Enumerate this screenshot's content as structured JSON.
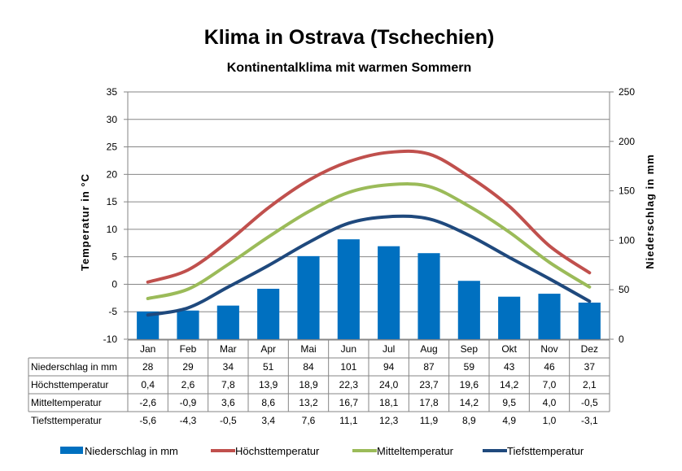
{
  "chart_data": {
    "type": "bar",
    "title": "Klima in Ostrava (Tschechien)",
    "subtitle": "Kontinentalklima mit warmen Sommern",
    "categories": [
      "Jan",
      "Feb",
      "Mar",
      "Apr",
      "Mai",
      "Jun",
      "Jul",
      "Aug",
      "Sep",
      "Okt",
      "Nov",
      "Dez"
    ],
    "y_left": {
      "label": "Temperatur  in  °C",
      "range": [
        -10,
        35
      ],
      "ticks": [
        "35",
        "30",
        "25",
        "20",
        "15",
        "10",
        "5",
        "0",
        "-5",
        "-10"
      ]
    },
    "y_right": {
      "label": "Niederschlag  in  mm",
      "range": [
        0,
        250
      ],
      "ticks": [
        "250",
        "200",
        "150",
        "100",
        "50",
        "0"
      ]
    },
    "grid": true,
    "legend_position": "bottom",
    "series": [
      {
        "name": "Niederschlag in mm",
        "kind": "bar",
        "axis": "right",
        "color": "#0070c0",
        "values": [
          28,
          29,
          34,
          51,
          84,
          101,
          94,
          87,
          59,
          43,
          46,
          37
        ],
        "labels": [
          "28",
          "29",
          "34",
          "51",
          "84",
          "101",
          "94",
          "87",
          "59",
          "43",
          "46",
          "37"
        ]
      },
      {
        "name": "Höchsttemperatur",
        "kind": "line",
        "axis": "left",
        "color": "#c0504d",
        "values": [
          0.4,
          2.6,
          7.8,
          13.9,
          18.9,
          22.3,
          24.0,
          23.7,
          19.6,
          14.2,
          7.0,
          2.1
        ],
        "labels": [
          "0,4",
          "2,6",
          "7,8",
          "13,9",
          "18,9",
          "22,3",
          "24,0",
          "23,7",
          "19,6",
          "14,2",
          "7,0",
          "2,1"
        ]
      },
      {
        "name": "Mitteltemperatur",
        "kind": "line",
        "axis": "left",
        "color": "#9bbb59",
        "values": [
          -2.6,
          -0.9,
          3.6,
          8.6,
          13.2,
          16.7,
          18.1,
          17.8,
          14.2,
          9.5,
          4.0,
          -0.5
        ],
        "labels": [
          "-2,6",
          "-0,9",
          "3,6",
          "8,6",
          "13,2",
          "16,7",
          "18,1",
          "17,8",
          "14,2",
          "9,5",
          "4,0",
          "-0,5"
        ]
      },
      {
        "name": "Tiefsttemperatur",
        "kind": "line",
        "axis": "left",
        "color": "#1f497d",
        "values": [
          -5.6,
          -4.3,
          -0.5,
          3.4,
          7.6,
          11.1,
          12.3,
          11.9,
          8.9,
          4.9,
          1.0,
          -3.1
        ],
        "labels": [
          "-5,6",
          "-4,3",
          "-0,5",
          "3,4",
          "7,6",
          "11,1",
          "12,3",
          "11,9",
          "8,9",
          "4,9",
          "1,0",
          "-3,1"
        ]
      }
    ]
  }
}
